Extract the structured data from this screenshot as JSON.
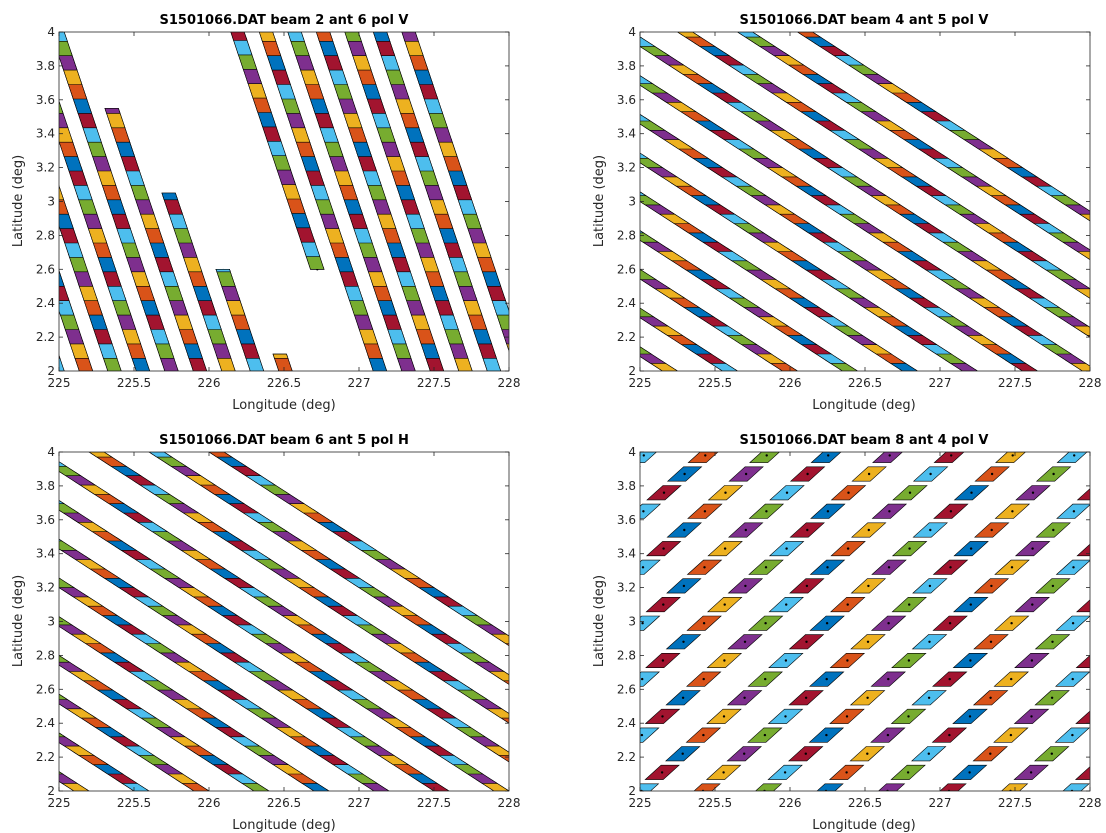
{
  "colors": {
    "palette": [
      "#0072BD",
      "#D95319",
      "#EDB120",
      "#7E2F8E",
      "#77AC30",
      "#4DBEEE",
      "#A2142F"
    ],
    "outline": "#000000",
    "dot": "#000000"
  },
  "chart_data": [
    {
      "type": "scatter",
      "title": "S1501066.DAT beam 2  ant 6  pol V",
      "xlabel": "Longitude (deg)",
      "ylabel": "Latitude (deg)",
      "xlim": [
        225,
        228
      ],
      "ylim": [
        2,
        4
      ],
      "xticks": [
        "225",
        "225.5",
        "226",
        "226.5",
        "227",
        "227.5",
        "228"
      ],
      "yticks": [
        "2",
        "2.2",
        "2.4",
        "2.6",
        "2.8",
        "3",
        "3.2",
        "3.4",
        "3.6",
        "3.8",
        "4"
      ],
      "grid": false,
      "footprint_pattern": {
        "stripe_slope_lon_per_lat": -0.38,
        "stripe_spacing_lon": 0.19,
        "along_track_step_lat": 0.085,
        "footprint_length_lat": 0.19,
        "footprint_halfwidth_lon": 0.045,
        "color_step": 1,
        "stripes": [
          {
            "lon_at_lat2": 224.8,
            "lat_range": [
              2,
              4
            ]
          },
          {
            "lon_at_lat2": 224.99,
            "lat_range": [
              2,
              4
            ]
          },
          {
            "lon_at_lat2": 225.18,
            "lat_range": [
              2,
              4
            ]
          },
          {
            "lon_at_lat2": 225.37,
            "lat_range": [
              2,
              4
            ]
          },
          {
            "lon_at_lat2": 225.56,
            "lat_range": [
              2,
              4
            ]
          },
          {
            "lon_at_lat2": 225.75,
            "lat_range": [
              2,
              4
            ]
          },
          {
            "lon_at_lat2": 225.94,
            "lat_range": [
              2,
              3.55
            ]
          },
          {
            "lon_at_lat2": 226.13,
            "lat_range": [
              2,
              3.05
            ]
          },
          {
            "lon_at_lat2": 226.32,
            "lat_range": [
              2,
              2.6
            ]
          },
          {
            "lon_at_lat2": 226.51,
            "lat_range": [
              2,
              2.1
            ]
          },
          {
            "lon_at_lat2": 226.95,
            "lat_range": [
              2.6,
              4
            ]
          },
          {
            "lon_at_lat2": 227.14,
            "lat_range": [
              2,
              4
            ]
          },
          {
            "lon_at_lat2": 227.33,
            "lat_range": [
              2,
              4
            ]
          },
          {
            "lon_at_lat2": 227.52,
            "lat_range": [
              2,
              4
            ]
          },
          {
            "lon_at_lat2": 227.71,
            "lat_range": [
              2,
              4
            ]
          },
          {
            "lon_at_lat2": 227.9,
            "lat_range": [
              2,
              4
            ]
          },
          {
            "lon_at_lat2": 228.09,
            "lat_range": [
              2,
              4
            ]
          }
        ]
      }
    },
    {
      "type": "scatter",
      "title": "S1501066.DAT beam 4  ant 5  pol V",
      "xlabel": "Longitude (deg)",
      "ylabel": "Latitude (deg)",
      "xlim": [
        225,
        228
      ],
      "ylim": [
        2,
        4
      ],
      "xticks": [
        "225",
        "225.5",
        "226",
        "226.5",
        "227",
        "227.5",
        "228"
      ],
      "yticks": [
        "2",
        "2.2",
        "2.4",
        "2.6",
        "2.8",
        "3",
        "3.2",
        "3.4",
        "3.6",
        "3.8",
        "4"
      ],
      "grid": false,
      "footprint_pattern": {
        "stripe_slope_lon_per_lat": -1.75,
        "stripe_spacing_lon": 0.2,
        "along_track_step_lat": 0.055,
        "footprint_length_lat": 0.13,
        "footprint_halfwidth_lon": 0.05,
        "color_step": 1,
        "stripes": [
          {
            "lon_at_lat2": 225.2,
            "lat_range": [
              2,
              4
            ]
          },
          {
            "lon_at_lat2": 225.6,
            "lat_range": [
              2,
              4
            ]
          },
          {
            "lon_at_lat2": 226.0,
            "lat_range": [
              2,
              4
            ]
          },
          {
            "lon_at_lat2": 226.4,
            "lat_range": [
              2,
              4
            ]
          },
          {
            "lon_at_lat2": 226.8,
            "lat_range": [
              2,
              4
            ]
          },
          {
            "lon_at_lat2": 227.2,
            "lat_range": [
              2,
              4
            ]
          },
          {
            "lon_at_lat2": 227.6,
            "lat_range": [
              2,
              4
            ]
          },
          {
            "lon_at_lat2": 228.0,
            "lat_range": [
              2,
              4
            ]
          },
          {
            "lon_at_lat2": 228.4,
            "lat_range": [
              2,
              4
            ]
          },
          {
            "lon_at_lat2": 228.8,
            "lat_range": [
              2,
              4
            ]
          },
          {
            "lon_at_lat2": 229.2,
            "lat_range": [
              2,
              4
            ]
          },
          {
            "lon_at_lat2": 229.6,
            "lat_range": [
              2,
              4
            ]
          }
        ]
      }
    },
    {
      "type": "scatter",
      "title": "S1501066.DAT beam 6  ant 5  pol H",
      "xlabel": "Longitude (deg)",
      "ylabel": "Latitude (deg)",
      "xlim": [
        225,
        228
      ],
      "ylim": [
        2,
        4
      ],
      "xticks": [
        "225",
        "225.5",
        "226",
        "226.5",
        "227",
        "227.5",
        "228"
      ],
      "yticks": [
        "2",
        "2.2",
        "2.4",
        "2.6",
        "2.8",
        "3",
        "3.2",
        "3.4",
        "3.6",
        "3.8",
        "4"
      ],
      "grid": false,
      "footprint_pattern": {
        "stripe_slope_lon_per_lat": -1.75,
        "stripe_spacing_lon": 0.2,
        "along_track_step_lat": 0.055,
        "footprint_length_lat": 0.13,
        "footprint_halfwidth_lon": 0.05,
        "color_step": 1,
        "stripes": [
          {
            "lon_at_lat2": 225.15,
            "lat_range": [
              2,
              4
            ]
          },
          {
            "lon_at_lat2": 225.55,
            "lat_range": [
              2,
              4
            ]
          },
          {
            "lon_at_lat2": 225.95,
            "lat_range": [
              2,
              4
            ]
          },
          {
            "lon_at_lat2": 226.35,
            "lat_range": [
              2,
              4
            ]
          },
          {
            "lon_at_lat2": 226.75,
            "lat_range": [
              2,
              4
            ]
          },
          {
            "lon_at_lat2": 227.15,
            "lat_range": [
              2,
              4
            ]
          },
          {
            "lon_at_lat2": 227.55,
            "lat_range": [
              2,
              4
            ]
          },
          {
            "lon_at_lat2": 227.95,
            "lat_range": [
              2,
              4
            ]
          },
          {
            "lon_at_lat2": 228.35,
            "lat_range": [
              2,
              4
            ]
          },
          {
            "lon_at_lat2": 228.75,
            "lat_range": [
              2,
              4
            ]
          },
          {
            "lon_at_lat2": 229.15,
            "lat_range": [
              2,
              4
            ]
          },
          {
            "lon_at_lat2": 229.55,
            "lat_range": [
              2,
              4
            ]
          }
        ]
      }
    },
    {
      "type": "scatter",
      "title": "S1501066.DAT beam 8  ant 4  pol V",
      "xlabel": "Longitude (deg)",
      "ylabel": "Latitude (deg)",
      "xlim": [
        225,
        228
      ],
      "ylim": [
        2,
        4
      ],
      "xticks": [
        "225",
        "225.5",
        "226",
        "226.5",
        "227",
        "227.5",
        "228"
      ],
      "yticks": [
        "2",
        "2.2",
        "2.4",
        "2.6",
        "2.8",
        "3",
        "3.2",
        "3.4",
        "3.6",
        "3.8",
        "4"
      ],
      "grid": false,
      "footprint_pattern": {
        "stripe_slope_lon_per_lat": 1.25,
        "stripe_spacing_lon": 0.205,
        "along_track_step_lat": 0.11,
        "footprint_length_lat": 0.085,
        "footprint_halfwidth_lon": 0.06,
        "color_step": 1,
        "stripes": [
          {
            "lon_at_lat2": 222.55,
            "lat_range": [
              2,
              4
            ]
          },
          {
            "lon_at_lat2": 222.96,
            "lat_range": [
              2,
              4
            ]
          },
          {
            "lon_at_lat2": 223.37,
            "lat_range": [
              2,
              4
            ]
          },
          {
            "lon_at_lat2": 223.78,
            "lat_range": [
              2,
              4
            ]
          },
          {
            "lon_at_lat2": 224.19,
            "lat_range": [
              2,
              4
            ]
          },
          {
            "lon_at_lat2": 224.6,
            "lat_range": [
              2,
              4
            ]
          },
          {
            "lon_at_lat2": 225.01,
            "lat_range": [
              2,
              4
            ]
          },
          {
            "lon_at_lat2": 225.42,
            "lat_range": [
              2,
              4
            ]
          },
          {
            "lon_at_lat2": 225.83,
            "lat_range": [
              2,
              4
            ]
          },
          {
            "lon_at_lat2": 226.24,
            "lat_range": [
              2,
              4
            ]
          },
          {
            "lon_at_lat2": 226.65,
            "lat_range": [
              2,
              4
            ]
          },
          {
            "lon_at_lat2": 227.06,
            "lat_range": [
              2,
              4
            ]
          },
          {
            "lon_at_lat2": 227.47,
            "lat_range": [
              2,
              4
            ]
          },
          {
            "lon_at_lat2": 227.88,
            "lat_range": [
              2,
              4
            ]
          }
        ]
      }
    }
  ]
}
